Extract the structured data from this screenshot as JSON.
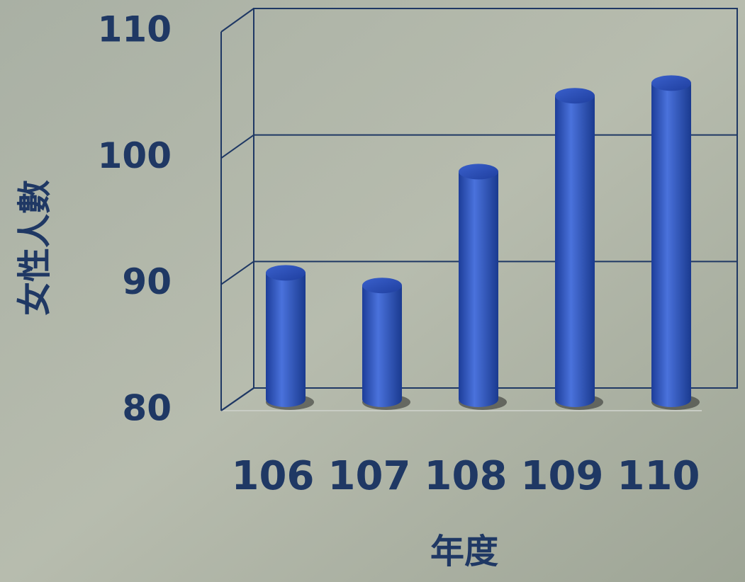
{
  "chart_data": {
    "type": "bar",
    "style": "3d-cylinder",
    "x_title": "年度",
    "y_title": "女性人數",
    "categories": [
      "106",
      "107",
      "108",
      "109",
      "110"
    ],
    "values": [
      90,
      89,
      98,
      104,
      105
    ],
    "color": "#2f55c0",
    "ylim": [
      80,
      110
    ],
    "yticks": [
      80,
      90,
      100,
      110
    ],
    "grid": true
  }
}
